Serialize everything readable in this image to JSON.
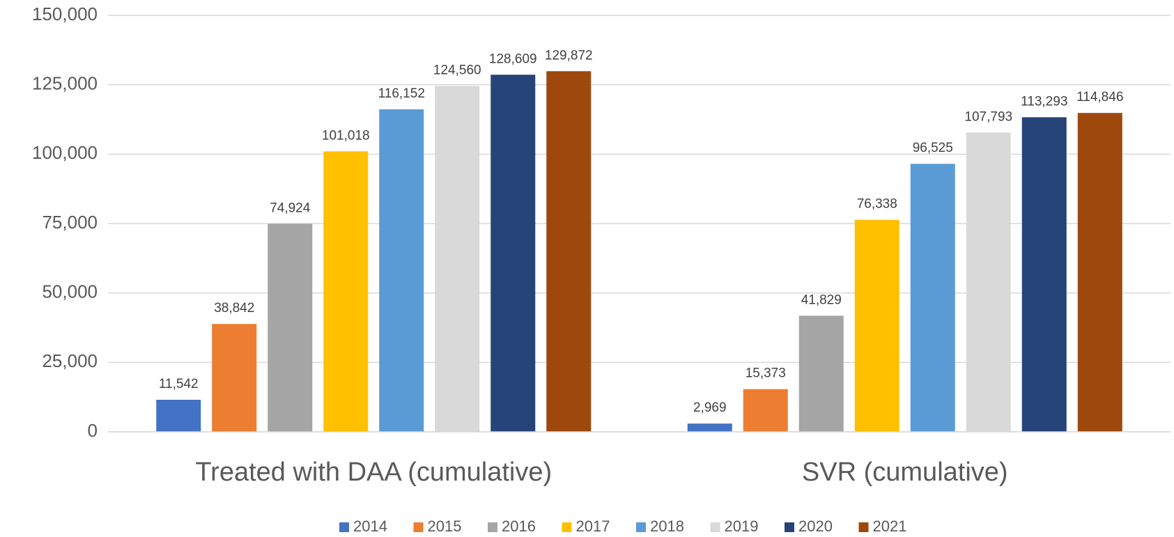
{
  "chart_data": {
    "type": "bar",
    "categories": [
      "Treated with DAA (cumulative)",
      "SVR (cumulative)"
    ],
    "series": [
      {
        "name": "2014",
        "color": "#4472c4",
        "values": [
          11542,
          2969
        ],
        "value_labels": [
          "11,542",
          "2,969"
        ]
      },
      {
        "name": "2015",
        "color": "#ed7d31",
        "values": [
          38842,
          15373
        ],
        "value_labels": [
          "38,842",
          "15,373"
        ]
      },
      {
        "name": "2016",
        "color": "#a5a5a5",
        "values": [
          74924,
          41829
        ],
        "value_labels": [
          "74,924",
          "41,829"
        ]
      },
      {
        "name": "2017",
        "color": "#ffc000",
        "values": [
          101018,
          76338
        ],
        "value_labels": [
          "101,018",
          "76,338"
        ]
      },
      {
        "name": "2018",
        "color": "#5b9bd5",
        "values": [
          116152,
          96525
        ],
        "value_labels": [
          "116,152",
          "96,525"
        ]
      },
      {
        "name": "2019",
        "color": "#d9d9d9",
        "values": [
          124560,
          107793
        ],
        "value_labels": [
          "124,560",
          "107,793"
        ]
      },
      {
        "name": "2020",
        "color": "#264478",
        "values": [
          128609,
          113293
        ],
        "value_labels": [
          "128,609",
          "113,293"
        ]
      },
      {
        "name": "2021",
        "color": "#9e480e",
        "values": [
          129872,
          114846
        ],
        "value_labels": [
          "129,872",
          "114,846"
        ]
      }
    ],
    "ylim": [
      0,
      150000
    ],
    "yticks": [
      0,
      {
        "value": 25000,
        "label": "25,000"
      },
      {
        "value": 50000,
        "label": "50,000"
      },
      {
        "value": 75000,
        "label": "75,000"
      },
      {
        "value": 100000,
        "label": "100,000"
      },
      {
        "value": 125000,
        "label": "125,000"
      },
      {
        "value": 150000,
        "label": "150,000"
      }
    ],
    "grid": true,
    "legend": "bottom"
  }
}
